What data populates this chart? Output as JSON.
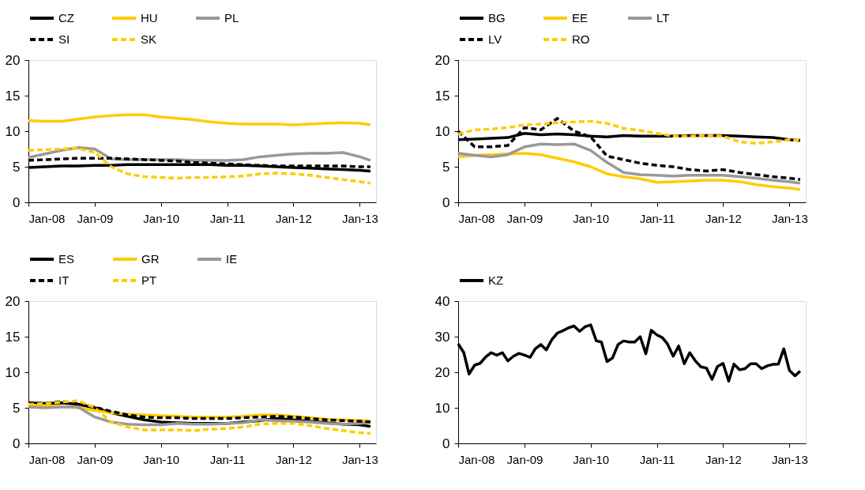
{
  "chart_data": [
    {
      "type": "line",
      "legend": "top",
      "grid": false,
      "x": [
        "2008-01",
        "2008-04",
        "2008-07",
        "2008-10",
        "2009-01",
        "2009-04",
        "2009-07",
        "2009-10",
        "2010-01",
        "2010-04",
        "2010-07",
        "2010-10",
        "2011-01",
        "2011-04",
        "2011-07",
        "2011-10",
        "2012-01",
        "2012-04",
        "2012-07",
        "2012-10",
        "2013-01",
        "2013-03"
      ],
      "xlim": [
        "2008-01",
        "2013-04"
      ],
      "xticks": [
        {
          "value": "2008-01",
          "label": "Jan-08"
        },
        {
          "value": "2009-01",
          "label": "Jan-09"
        },
        {
          "value": "2010-01",
          "label": "Jan-10"
        },
        {
          "value": "2011-01",
          "label": "Jan-11"
        },
        {
          "value": "2012-01",
          "label": "Jan-12"
        },
        {
          "value": "2013-01",
          "label": "Jan-13"
        }
      ],
      "ylim": [
        0,
        20
      ],
      "yticks": [
        0,
        5,
        10,
        15,
        20
      ],
      "series": [
        {
          "name": "CZ",
          "color": "#000000",
          "line_style": "solid",
          "values": [
            4.9,
            5.0,
            5.1,
            5.1,
            5.2,
            5.2,
            5.3,
            5.3,
            5.3,
            5.3,
            5.3,
            5.3,
            5.2,
            5.2,
            5.1,
            5.0,
            4.9,
            4.8,
            4.7,
            4.6,
            4.5,
            4.4
          ]
        },
        {
          "name": "HU",
          "color": "#ffcc00",
          "line_style": "solid",
          "values": [
            11.5,
            11.4,
            11.4,
            11.7,
            12.0,
            12.2,
            12.3,
            12.3,
            12.0,
            11.8,
            11.6,
            11.3,
            11.1,
            11.0,
            11.0,
            11.0,
            10.9,
            11.0,
            11.1,
            11.2,
            11.1,
            10.9
          ]
        },
        {
          "name": "PL",
          "color": "#999999",
          "line_style": "solid",
          "values": [
            6.3,
            6.8,
            7.3,
            7.7,
            7.5,
            6.1,
            6.0,
            6.0,
            6.0,
            6.0,
            5.9,
            5.9,
            5.9,
            6.0,
            6.4,
            6.6,
            6.8,
            6.9,
            6.9,
            7.0,
            6.4,
            5.9
          ]
        },
        {
          "name": "SI",
          "color": "#000000",
          "line_style": "dashed",
          "values": [
            5.9,
            6.0,
            6.1,
            6.2,
            6.2,
            6.2,
            6.1,
            6.0,
            5.9,
            5.8,
            5.6,
            5.5,
            5.4,
            5.3,
            5.2,
            5.1,
            5.1,
            5.1,
            5.1,
            5.1,
            5.0,
            5.0
          ]
        },
        {
          "name": "SK",
          "color": "#ffcc00",
          "line_style": "dashed",
          "values": [
            7.3,
            7.4,
            7.5,
            7.6,
            7.0,
            5.0,
            4.0,
            3.6,
            3.5,
            3.4,
            3.5,
            3.5,
            3.6,
            3.7,
            4.0,
            4.1,
            4.0,
            3.8,
            3.5,
            3.2,
            2.9,
            2.7
          ]
        }
      ]
    },
    {
      "type": "line",
      "legend": "top",
      "grid": false,
      "x": [
        "2008-01",
        "2008-04",
        "2008-07",
        "2008-10",
        "2009-01",
        "2009-04",
        "2009-07",
        "2009-10",
        "2010-01",
        "2010-04",
        "2010-07",
        "2010-10",
        "2011-01",
        "2011-04",
        "2011-07",
        "2011-10",
        "2012-01",
        "2012-04",
        "2012-07",
        "2012-10",
        "2013-01",
        "2013-03"
      ],
      "xlim": [
        "2008-01",
        "2013-04"
      ],
      "xticks": [
        {
          "value": "2008-01",
          "label": "Jan-08"
        },
        {
          "value": "2009-01",
          "label": "Jan-09"
        },
        {
          "value": "2010-01",
          "label": "Jan-10"
        },
        {
          "value": "2011-01",
          "label": "Jan-11"
        },
        {
          "value": "2012-01",
          "label": "Jan-12"
        },
        {
          "value": "2013-01",
          "label": "Jan-13"
        }
      ],
      "ylim": [
        0,
        20
      ],
      "yticks": [
        0,
        5,
        10,
        15,
        20
      ],
      "series": [
        {
          "name": "BG",
          "color": "#000000",
          "line_style": "solid",
          "values": [
            8.8,
            8.9,
            9.0,
            9.1,
            9.7,
            9.5,
            9.6,
            9.5,
            9.3,
            9.2,
            9.4,
            9.3,
            9.3,
            9.3,
            9.4,
            9.4,
            9.4,
            9.3,
            9.2,
            9.1,
            8.8,
            8.7
          ]
        },
        {
          "name": "EE",
          "color": "#ffcc00",
          "line_style": "solid",
          "values": [
            6.4,
            6.6,
            6.7,
            6.8,
            6.9,
            6.7,
            6.2,
            5.7,
            5.0,
            4.0,
            3.6,
            3.3,
            2.8,
            2.9,
            3.0,
            3.1,
            3.1,
            2.9,
            2.5,
            2.2,
            2.0,
            1.8
          ]
        },
        {
          "name": "LT",
          "color": "#999999",
          "line_style": "solid",
          "values": [
            6.9,
            6.6,
            6.4,
            6.7,
            7.8,
            8.2,
            8.1,
            8.2,
            7.3,
            5.6,
            4.2,
            3.9,
            3.8,
            3.7,
            3.8,
            3.8,
            3.8,
            3.6,
            3.4,
            3.1,
            2.9,
            2.7
          ]
        },
        {
          "name": "LV",
          "color": "#000000",
          "line_style": "dashed",
          "values": [
            10.0,
            7.8,
            7.8,
            8.0,
            10.5,
            10.2,
            11.8,
            10.0,
            9.2,
            6.5,
            6.0,
            5.5,
            5.2,
            5.0,
            4.6,
            4.4,
            4.6,
            4.2,
            3.9,
            3.6,
            3.4,
            3.2
          ]
        },
        {
          "name": "RO",
          "color": "#ffcc00",
          "line_style": "dashed",
          "values": [
            9.6,
            10.2,
            10.3,
            10.5,
            10.9,
            11.0,
            11.2,
            11.3,
            11.4,
            11.1,
            10.4,
            10.1,
            9.7,
            9.3,
            9.3,
            9.4,
            9.3,
            8.5,
            8.3,
            8.5,
            8.8,
            8.7
          ]
        }
      ]
    },
    {
      "type": "line",
      "legend": "top",
      "grid": false,
      "x": [
        "2008-01",
        "2008-04",
        "2008-07",
        "2008-10",
        "2009-01",
        "2009-04",
        "2009-07",
        "2009-10",
        "2010-01",
        "2010-04",
        "2010-07",
        "2010-10",
        "2011-01",
        "2011-04",
        "2011-07",
        "2011-10",
        "2012-01",
        "2012-04",
        "2012-07",
        "2012-10",
        "2013-01",
        "2013-03"
      ],
      "xlim": [
        "2008-01",
        "2013-04"
      ],
      "xticks": [
        {
          "value": "2008-01",
          "label": "Jan-08"
        },
        {
          "value": "2009-01",
          "label": "Jan-09"
        },
        {
          "value": "2010-01",
          "label": "Jan-10"
        },
        {
          "value": "2011-01",
          "label": "Jan-11"
        },
        {
          "value": "2012-01",
          "label": "Jan-12"
        },
        {
          "value": "2013-01",
          "label": "Jan-13"
        }
      ],
      "ylim": [
        0,
        20
      ],
      "yticks": [
        0,
        5,
        10,
        15,
        20
      ],
      "series": [
        {
          "name": "ES",
          "color": "#000000",
          "line_style": "solid",
          "values": [
            5.7,
            5.6,
            5.7,
            5.5,
            5.0,
            4.3,
            3.8,
            3.3,
            3.0,
            2.9,
            2.8,
            2.8,
            2.8,
            3.0,
            3.2,
            3.5,
            3.3,
            3.1,
            2.9,
            2.7,
            2.6,
            2.4
          ]
        },
        {
          "name": "GR",
          "color": "#ffcc00",
          "line_style": "solid",
          "values": [
            5.4,
            5.3,
            5.2,
            5.0,
            4.6,
            4.3,
            4.1,
            4.0,
            3.9,
            3.8,
            3.7,
            3.7,
            3.7,
            3.8,
            4.0,
            4.0,
            3.8,
            3.6,
            3.4,
            3.3,
            3.2,
            3.2
          ]
        },
        {
          "name": "IE",
          "color": "#999999",
          "line_style": "solid",
          "values": [
            5.1,
            5.0,
            5.1,
            5.1,
            3.7,
            3.0,
            2.7,
            2.6,
            2.6,
            2.8,
            2.7,
            2.7,
            2.8,
            2.9,
            3.3,
            3.2,
            3.1,
            3.0,
            2.8,
            2.7,
            2.8,
            3.0
          ]
        },
        {
          "name": "IT",
          "color": "#000000",
          "line_style": "dashed",
          "values": [
            5.7,
            5.6,
            5.9,
            5.6,
            5.1,
            4.5,
            4.0,
            3.7,
            3.6,
            3.6,
            3.5,
            3.5,
            3.5,
            3.6,
            3.7,
            3.8,
            3.7,
            3.5,
            3.3,
            3.2,
            3.1,
            3.0
          ]
        },
        {
          "name": "PT",
          "color": "#ffcc00",
          "line_style": "dashed",
          "values": [
            5.5,
            5.6,
            5.8,
            6.0,
            5.0,
            3.0,
            2.3,
            1.9,
            1.9,
            1.9,
            1.8,
            2.0,
            2.1,
            2.3,
            2.7,
            2.8,
            2.8,
            2.5,
            2.1,
            1.8,
            1.5,
            1.4
          ]
        }
      ]
    },
    {
      "type": "line",
      "legend": "top",
      "grid": false,
      "x": [
        "2008-01",
        "2008-02",
        "2008-03",
        "2008-04",
        "2008-05",
        "2008-06",
        "2008-07",
        "2008-08",
        "2008-09",
        "2008-10",
        "2008-11",
        "2008-12",
        "2009-01",
        "2009-02",
        "2009-03",
        "2009-04",
        "2009-05",
        "2009-06",
        "2009-07",
        "2009-08",
        "2009-09",
        "2009-10",
        "2009-11",
        "2009-12",
        "2010-01",
        "2010-02",
        "2010-03",
        "2010-04",
        "2010-05",
        "2010-06",
        "2010-07",
        "2010-08",
        "2010-09",
        "2010-10",
        "2010-11",
        "2010-12",
        "2011-01",
        "2011-02",
        "2011-03",
        "2011-04",
        "2011-05",
        "2011-06",
        "2011-07",
        "2011-08",
        "2011-09",
        "2011-10",
        "2011-11",
        "2011-12",
        "2012-01",
        "2012-02",
        "2012-03",
        "2012-04",
        "2012-05",
        "2012-06",
        "2012-07",
        "2012-08",
        "2012-09",
        "2012-10",
        "2012-11",
        "2012-12",
        "2013-01",
        "2013-02",
        "2013-03"
      ],
      "xlim": [
        "2008-01",
        "2013-04"
      ],
      "xticks": [
        {
          "value": "2008-01",
          "label": "Jan-08"
        },
        {
          "value": "2009-01",
          "label": "Jan-09"
        },
        {
          "value": "2010-01",
          "label": "Jan-10"
        },
        {
          "value": "2011-01",
          "label": "Jan-11"
        },
        {
          "value": "2012-01",
          "label": "Jan-12"
        },
        {
          "value": "2013-01",
          "label": "Jan-13"
        }
      ],
      "ylim": [
        0,
        40
      ],
      "yticks": [
        0,
        10,
        20,
        30,
        40
      ],
      "series": [
        {
          "name": "KZ",
          "color": "#000000",
          "line_style": "solid",
          "values": [
            28,
            25.5,
            19.5,
            22,
            22.5,
            24.3,
            25.5,
            24.8,
            25.5,
            23.2,
            24.5,
            25.3,
            24.8,
            24.2,
            26.6,
            27.8,
            26.3,
            29.2,
            31,
            31.7,
            32.5,
            33,
            31.5,
            32.8,
            33.3,
            28.8,
            28.5,
            23,
            24,
            27.8,
            28.8,
            28.5,
            28.5,
            30,
            25.2,
            31.8,
            30.5,
            29.7,
            27.9,
            24.5,
            27.4,
            22.4,
            25.5,
            23.2,
            21.5,
            21.2,
            18,
            21.6,
            22.5,
            17.5,
            22.3,
            20.7,
            21,
            22.4,
            22.4,
            21,
            21.8,
            22.2,
            22.3,
            26.6,
            20.5,
            19,
            20.3
          ]
        }
      ]
    }
  ]
}
